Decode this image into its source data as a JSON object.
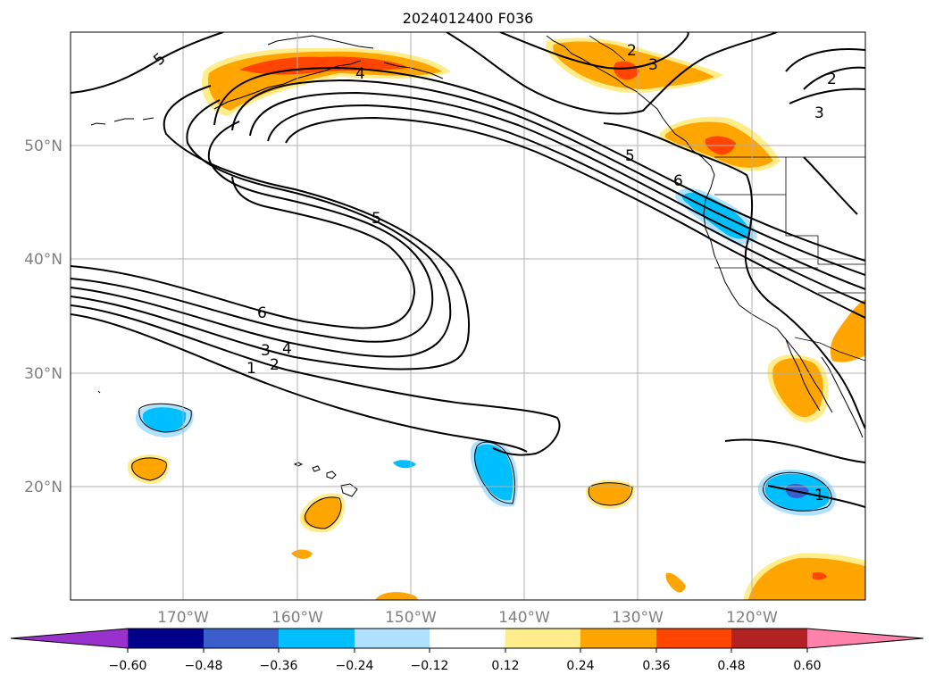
{
  "title": "2024012400 F036",
  "map": {
    "lat_gridlines": [
      20,
      30,
      40,
      50
    ],
    "lon_gridlines": [
      -170,
      -160,
      -150,
      -140,
      -130,
      -120
    ],
    "lat_labels": [
      "20°N",
      "30°N",
      "40°N",
      "50°N"
    ],
    "lon_labels": [
      "170°W",
      "160°W",
      "150°W",
      "140°W",
      "130°W",
      "120°W"
    ],
    "contour_labels": [
      "5",
      "4",
      "2",
      "3",
      "2",
      "3",
      "5",
      "6",
      "5",
      "6",
      "3",
      "4",
      "1",
      "2",
      "1"
    ]
  },
  "colorbar": {
    "colors": [
      "#9932cc",
      "#00008b",
      "#3a5fcd",
      "#00bfff",
      "#b0e2ff",
      "#ffffff",
      "#ffec8b",
      "#ffa500",
      "#ff4500",
      "#b22222",
      "#ff82ab"
    ],
    "ticks": [
      "−0.60",
      "−0.48",
      "−0.36",
      "−0.24",
      "−0.12",
      "0.12",
      "0.24",
      "0.36",
      "0.48",
      "0.60"
    ]
  }
}
